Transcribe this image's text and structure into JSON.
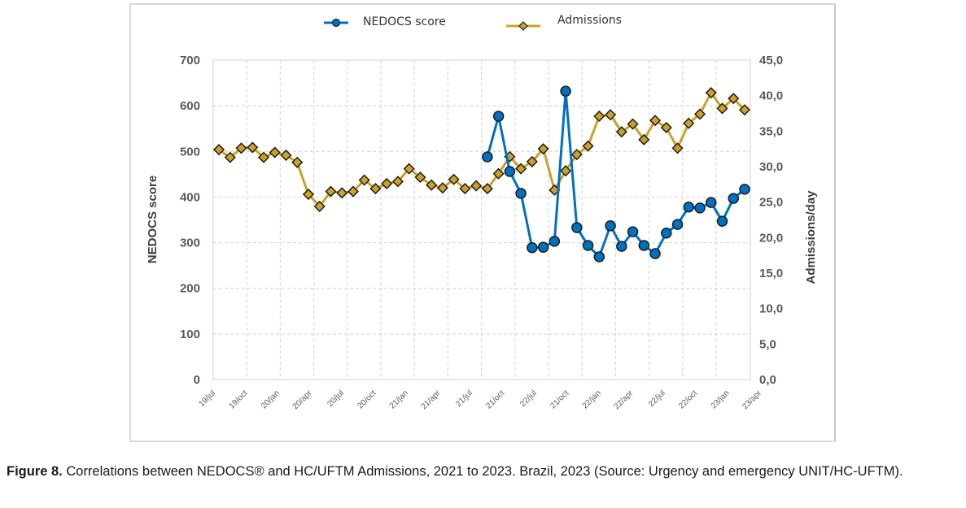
{
  "chart_data": {
    "type": "line",
    "title": "",
    "xlabel": "",
    "ylabel": "NEDOCS score",
    "y2label": "Admissions/day",
    "ylim": [
      0,
      700
    ],
    "y2lim": [
      0,
      45
    ],
    "grid": true,
    "legend_position": "top",
    "y_ticks": [
      "0",
      "100",
      "200",
      "300",
      "400",
      "500",
      "600",
      "700"
    ],
    "y2_ticks": [
      "0,0",
      "5,0",
      "10,0",
      "15,0",
      "20,0",
      "25,0",
      "30,0",
      "35,0",
      "40,0",
      "45,0"
    ],
    "x_tick_labels": [
      "19/jul",
      "19/oct",
      "20/jan",
      "20/apr",
      "20/jul",
      "20/oct",
      "21/jan",
      "21/apr",
      "21/jul",
      "21/oct",
      "22/jul",
      "21/oct",
      "22/jan",
      "22/apr",
      "22/jul",
      "22/oct",
      "23/jan",
      "23/apr"
    ],
    "n_points": 48,
    "series": [
      {
        "name": "NEDOCS score",
        "axis": "left",
        "color": "#0070c0",
        "marker": "circle",
        "start_index": 24,
        "values": [
          488,
          577,
          456,
          408,
          289,
          290,
          303,
          632,
          333,
          294,
          269,
          337,
          292,
          324,
          294,
          276,
          321,
          340,
          378,
          376,
          388,
          347,
          397,
          417
        ]
      },
      {
        "name": "Admissions",
        "axis": "right",
        "color": "#c9a227",
        "marker": "diamond",
        "start_index": 0,
        "values": [
          32.4,
          31.3,
          32.6,
          32.7,
          31.3,
          32.0,
          31.6,
          30.6,
          26.1,
          24.4,
          26.5,
          26.3,
          26.5,
          28.1,
          26.9,
          27.6,
          27.9,
          29.7,
          28.5,
          27.4,
          27.0,
          28.2,
          26.9,
          27.3,
          26.9,
          29.0,
          31.4,
          29.7,
          30.7,
          32.5,
          26.7,
          29.4,
          31.7,
          32.9,
          37.1,
          37.3,
          34.9,
          36.0,
          33.8,
          36.5,
          35.5,
          32.6,
          36.1,
          37.4,
          40.4,
          38.2,
          39.6,
          38.0
        ]
      }
    ]
  },
  "caption": {
    "label": "Figure 8.",
    "text": " Correlations between NEDOCS® and HC/UFTM Admissions, 2021 to 2023. Brazil, 2023 (Source: Urgency and emergency UNIT/HC-UFTM)."
  }
}
